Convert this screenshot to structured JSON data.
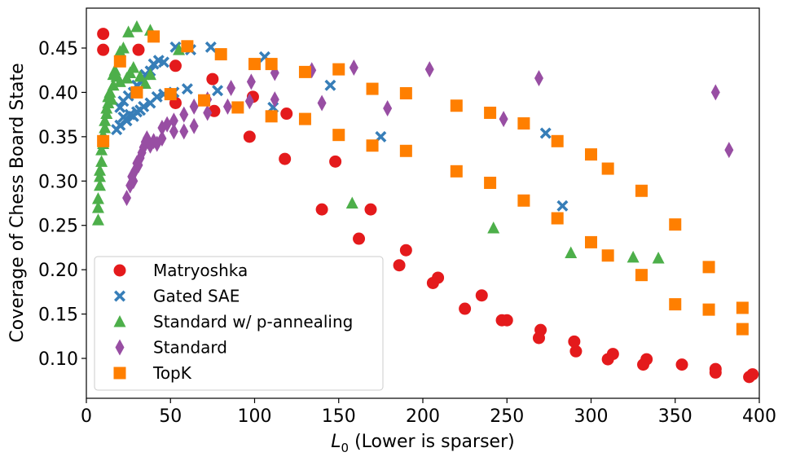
{
  "chart_data": {
    "type": "scatter",
    "xlabel_main": "L",
    "xlabel_sub": "0",
    "xlabel_rest": " (Lower is sparser)",
    "ylabel": "Coverage of Chess Board State",
    "xlim": [
      0,
      400
    ],
    "ylim": [
      0.055,
      0.495
    ],
    "xticks": [
      "0",
      "50",
      "100",
      "150",
      "200",
      "250",
      "300",
      "350",
      "400"
    ],
    "xtick_values": [
      0,
      50,
      100,
      150,
      200,
      250,
      300,
      350,
      400
    ],
    "yticks": [
      "0.10",
      "0.15",
      "0.20",
      "0.25",
      "0.30",
      "0.35",
      "0.40",
      "0.45"
    ],
    "ytick_values": [
      0.1,
      0.15,
      0.2,
      0.25,
      0.3,
      0.35,
      0.4,
      0.45
    ],
    "legend_position": "bottom-left",
    "series": [
      {
        "name": "Matryoshka",
        "marker": "circle",
        "color": "#e41a1c",
        "points": [
          [
            10,
            0.466
          ],
          [
            10,
            0.448
          ],
          [
            31,
            0.448
          ],
          [
            53,
            0.43
          ],
          [
            75,
            0.415
          ],
          [
            53,
            0.388
          ],
          [
            76,
            0.379
          ],
          [
            99,
            0.395
          ],
          [
            97,
            0.35
          ],
          [
            119,
            0.376
          ],
          [
            118,
            0.325
          ],
          [
            148,
            0.322
          ],
          [
            140,
            0.268
          ],
          [
            169,
            0.268
          ],
          [
            162,
            0.235
          ],
          [
            190,
            0.222
          ],
          [
            186,
            0.205
          ],
          [
            209,
            0.191
          ],
          [
            206,
            0.185
          ],
          [
            235,
            0.171
          ],
          [
            225,
            0.156
          ],
          [
            247,
            0.143
          ],
          [
            250,
            0.143
          ],
          [
            270,
            0.132
          ],
          [
            269,
            0.123
          ],
          [
            290,
            0.119
          ],
          [
            291,
            0.108
          ],
          [
            313,
            0.105
          ],
          [
            310,
            0.099
          ],
          [
            333,
            0.099
          ],
          [
            331,
            0.093
          ],
          [
            354,
            0.093
          ],
          [
            374,
            0.088
          ],
          [
            374,
            0.084
          ],
          [
            396,
            0.082
          ],
          [
            394,
            0.079
          ]
        ]
      },
      {
        "name": "Gated SAE",
        "marker": "x",
        "color": "#377eb8",
        "points": [
          [
            18,
            0.358
          ],
          [
            20,
            0.363
          ],
          [
            22,
            0.372
          ],
          [
            24,
            0.368
          ],
          [
            26,
            0.375
          ],
          [
            28,
            0.373
          ],
          [
            30,
            0.378
          ],
          [
            32,
            0.38
          ],
          [
            34,
            0.384
          ],
          [
            38,
            0.388
          ],
          [
            42,
            0.395
          ],
          [
            46,
            0.398
          ],
          [
            52,
            0.4
          ],
          [
            60,
            0.404
          ],
          [
            78,
            0.402
          ],
          [
            20,
            0.383
          ],
          [
            22,
            0.39
          ],
          [
            25,
            0.396
          ],
          [
            28,
            0.4
          ],
          [
            30,
            0.408
          ],
          [
            33,
            0.412
          ],
          [
            35,
            0.42
          ],
          [
            38,
            0.424
          ],
          [
            40,
            0.432
          ],
          [
            43,
            0.436
          ],
          [
            46,
            0.434
          ],
          [
            53,
            0.451
          ],
          [
            62,
            0.448
          ],
          [
            74,
            0.451
          ],
          [
            106,
            0.44
          ],
          [
            145,
            0.408
          ],
          [
            175,
            0.35
          ],
          [
            273,
            0.354
          ],
          [
            283,
            0.272
          ],
          [
            111,
            0.383
          ]
        ]
      },
      {
        "name": "Standard w/ p-annealing",
        "marker": "triangle",
        "color": "#4daf4a",
        "points": [
          [
            7,
            0.256
          ],
          [
            7,
            0.27
          ],
          [
            7,
            0.28
          ],
          [
            8,
            0.295
          ],
          [
            8,
            0.305
          ],
          [
            8,
            0.312
          ],
          [
            9,
            0.322
          ],
          [
            9,
            0.335
          ],
          [
            10,
            0.342
          ],
          [
            10,
            0.352
          ],
          [
            11,
            0.36
          ],
          [
            11,
            0.368
          ],
          [
            12,
            0.376
          ],
          [
            12,
            0.382
          ],
          [
            13,
            0.388
          ],
          [
            13,
            0.395
          ],
          [
            14,
            0.4
          ],
          [
            15,
            0.392
          ],
          [
            16,
            0.408
          ],
          [
            16,
            0.42
          ],
          [
            17,
            0.425
          ],
          [
            18,
            0.418
          ],
          [
            20,
            0.412
          ],
          [
            20,
            0.446
          ],
          [
            22,
            0.45
          ],
          [
            24,
            0.416
          ],
          [
            26,
            0.422
          ],
          [
            25,
            0.468
          ],
          [
            28,
            0.428
          ],
          [
            30,
            0.474
          ],
          [
            32,
            0.418
          ],
          [
            35,
            0.41
          ],
          [
            38,
            0.42
          ],
          [
            38,
            0.47
          ],
          [
            55,
            0.448
          ],
          [
            158,
            0.275
          ],
          [
            242,
            0.247
          ],
          [
            288,
            0.219
          ],
          [
            325,
            0.214
          ],
          [
            340,
            0.213
          ]
        ]
      },
      {
        "name": "Standard",
        "marker": "diamond",
        "color": "#984ea3",
        "points": [
          [
            24,
            0.281
          ],
          [
            26,
            0.295
          ],
          [
            27,
            0.305
          ],
          [
            28,
            0.3
          ],
          [
            29,
            0.312
          ],
          [
            30,
            0.32
          ],
          [
            31,
            0.318
          ],
          [
            32,
            0.326
          ],
          [
            33,
            0.332
          ],
          [
            34,
            0.338
          ],
          [
            35,
            0.344
          ],
          [
            36,
            0.348
          ],
          [
            38,
            0.34
          ],
          [
            40,
            0.345
          ],
          [
            42,
            0.342
          ],
          [
            45,
            0.348
          ],
          [
            45,
            0.36
          ],
          [
            48,
            0.364
          ],
          [
            52,
            0.368
          ],
          [
            52,
            0.356
          ],
          [
            58,
            0.356
          ],
          [
            58,
            0.375
          ],
          [
            64,
            0.362
          ],
          [
            64,
            0.384
          ],
          [
            72,
            0.377
          ],
          [
            72,
            0.392
          ],
          [
            84,
            0.384
          ],
          [
            86,
            0.405
          ],
          [
            97,
            0.39
          ],
          [
            98,
            0.412
          ],
          [
            112,
            0.392
          ],
          [
            112,
            0.422
          ],
          [
            134,
            0.425
          ],
          [
            140,
            0.388
          ],
          [
            159,
            0.428
          ],
          [
            179,
            0.382
          ],
          [
            204,
            0.426
          ],
          [
            248,
            0.37
          ],
          [
            269,
            0.416
          ],
          [
            374,
            0.4
          ],
          [
            382,
            0.335
          ]
        ]
      },
      {
        "name": "TopK",
        "marker": "square",
        "color": "#ff7f00",
        "points": [
          [
            10,
            0.345
          ],
          [
            20,
            0.435
          ],
          [
            30,
            0.4
          ],
          [
            40,
            0.463
          ],
          [
            50,
            0.398
          ],
          [
            60,
            0.452
          ],
          [
            70,
            0.391
          ],
          [
            80,
            0.443
          ],
          [
            90,
            0.383
          ],
          [
            100,
            0.432
          ],
          [
            110,
            0.373
          ],
          [
            110,
            0.432
          ],
          [
            130,
            0.37
          ],
          [
            130,
            0.423
          ],
          [
            150,
            0.352
          ],
          [
            150,
            0.426
          ],
          [
            170,
            0.34
          ],
          [
            170,
            0.404
          ],
          [
            190,
            0.334
          ],
          [
            190,
            0.399
          ],
          [
            220,
            0.311
          ],
          [
            220,
            0.385
          ],
          [
            240,
            0.298
          ],
          [
            240,
            0.377
          ],
          [
            260,
            0.278
          ],
          [
            260,
            0.365
          ],
          [
            280,
            0.258
          ],
          [
            280,
            0.345
          ],
          [
            300,
            0.231
          ],
          [
            300,
            0.33
          ],
          [
            310,
            0.216
          ],
          [
            310,
            0.314
          ],
          [
            330,
            0.194
          ],
          [
            330,
            0.289
          ],
          [
            350,
            0.161
          ],
          [
            350,
            0.251
          ],
          [
            370,
            0.155
          ],
          [
            370,
            0.203
          ],
          [
            390,
            0.157
          ],
          [
            390,
            0.133
          ]
        ]
      }
    ]
  }
}
